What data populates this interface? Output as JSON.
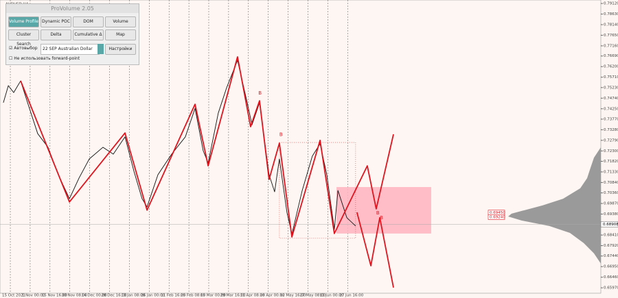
{
  "chart_data": {
    "type": "line",
    "symbol": "AUDUSD,H4",
    "xlim": [
      -0.52,
      29.76
    ],
    "ylim": [
      0.6572,
      0.7928
    ],
    "xticks": [
      {
        "value": 0,
        "label": "15 Oct 2021"
      },
      {
        "value": 1,
        "label": "1 Nov 00:00"
      },
      {
        "value": 2,
        "label": "15 Nov 16:00"
      },
      {
        "value": 3,
        "label": "30 Nov 08:00"
      },
      {
        "value": 4,
        "label": "14 Dec 00:00"
      },
      {
        "value": 5,
        "label": "28 Dec 16:00"
      },
      {
        "value": 6,
        "label": "13 Jan 08:00"
      },
      {
        "value": 7,
        "label": "26 Jan 00:00"
      },
      {
        "value": 8,
        "label": "11 Feb 16:00"
      },
      {
        "value": 9,
        "label": "25 Feb 08:00"
      },
      {
        "value": 10,
        "label": "15 Mar 00:00"
      },
      {
        "value": 11,
        "label": "29 Mar 16:00"
      },
      {
        "value": 12,
        "label": "11 Apr 08:00"
      },
      {
        "value": 13,
        "label": "28 Apr 00:00"
      },
      {
        "value": 14,
        "label": "12 May 16:00"
      },
      {
        "value": 15,
        "label": "27 May 08:00"
      },
      {
        "value": 16,
        "label": "13 Jun 00:00"
      },
      {
        "value": 17,
        "label": "27 Jun 16:00"
      }
    ],
    "yticks": [
      {
        "value": 0.7912,
        "label": "0.79120"
      },
      {
        "value": 0.7863,
        "label": "0.78630"
      },
      {
        "value": 0.7814,
        "label": "0.78140"
      },
      {
        "value": 0.7765,
        "label": "0.77650"
      },
      {
        "value": 0.7716,
        "label": "0.77160"
      },
      {
        "value": 0.7669,
        "label": "0.76690"
      },
      {
        "value": 0.762,
        "label": "0.76200"
      },
      {
        "value": 0.7571,
        "label": "0.75710"
      },
      {
        "value": 0.7523,
        "label": "0.75230"
      },
      {
        "value": 0.7474,
        "label": "0.74740"
      },
      {
        "value": 0.7425,
        "label": "0.74250"
      },
      {
        "value": 0.7377,
        "label": "0.73770"
      },
      {
        "value": 0.7328,
        "label": "0.73280"
      },
      {
        "value": 0.7279,
        "label": "0.72790"
      },
      {
        "value": 0.723,
        "label": "0.72300"
      },
      {
        "value": 0.7182,
        "label": "0.71820"
      },
      {
        "value": 0.7133,
        "label": "0.71330"
      },
      {
        "value": 0.7084,
        "label": "0.70840"
      },
      {
        "value": 0.7036,
        "label": "0.70360"
      },
      {
        "value": 0.6987,
        "label": "0.69870"
      },
      {
        "value": 0.6938,
        "label": "0.69380"
      },
      {
        "value": 0.6841,
        "label": "0.68410"
      },
      {
        "value": 0.6792,
        "label": "0.67920"
      },
      {
        "value": 0.6744,
        "label": "0.67440"
      },
      {
        "value": 0.6695,
        "label": "0.66950"
      },
      {
        "value": 0.6646,
        "label": "0.66460"
      },
      {
        "value": 0.6597,
        "label": "0.65970"
      }
    ],
    "current_price": 0.68908,
    "series": [
      {
        "color": "#111111",
        "x": [
          -0.35,
          -0.1,
          0.17,
          0.52,
          0.87,
          1.38,
          1.9,
          2.42,
          2.98,
          3.46,
          3.98,
          4.67,
          5.19,
          5.78,
          6.23,
          6.64,
          6.89,
          7.44,
          8.13,
          8.82,
          9.31,
          9.72,
          9.97,
          10.48,
          10.9,
          11.45,
          11.94,
          12.18,
          12.56,
          13.04,
          13.32,
          13.56,
          13.94,
          14.19,
          14.71,
          15.22,
          15.61,
          15.95,
          16.33,
          16.51,
          16.96,
          17.4
        ],
        "values": [
          0.7453,
          0.7532,
          0.75,
          0.7554,
          0.7453,
          0.731,
          0.7247,
          0.712,
          0.7009,
          0.7104,
          0.7193,
          0.7247,
          0.7215,
          0.7295,
          0.7136,
          0.7009,
          0.6971,
          0.712,
          0.7215,
          0.7295,
          0.7427,
          0.7231,
          0.7174,
          0.7405,
          0.7522,
          0.7649,
          0.7453,
          0.7351,
          0.7453,
          0.712,
          0.7041,
          0.7193,
          0.6946,
          0.6845,
          0.7047,
          0.7206,
          0.7263,
          0.712,
          0.6867,
          0.7047,
          0.6921,
          0.6883
        ]
      },
      {
        "color": "#e0141e",
        "x": [
          0.52,
          2.98,
          5.78,
          6.89,
          9.31,
          9.97,
          11.45,
          12.11,
          12.56,
          13.04,
          13.56,
          14.19,
          15.61,
          16.33,
          17.99,
          18.44,
          19.31
        ],
        "values": [
          0.7554,
          0.6994,
          0.7313,
          0.6956,
          0.7446,
          0.7161,
          0.7665,
          0.7342,
          0.7462,
          0.7098,
          0.7266,
          0.6832,
          0.7279,
          0.6848,
          0.7161,
          0.6962,
          0.7307
        ]
      },
      {
        "color": "#e0141e",
        "x": [
          17.47,
          18.17,
          18.62,
          19.31
        ],
        "values": [
          0.6946,
          0.6699,
          0.6921,
          0.6598
        ]
      }
    ],
    "zones": [
      {
        "x": [
          16.44,
          21.21
        ],
        "y": [
          0.7063,
          0.6848
        ],
        "color": "#ffb3c0"
      },
      {
        "x": [
          13.56,
          17.4
        ],
        "y": [
          0.7269,
          0.6826
        ],
        "color": "#e05050",
        "style": "dotted"
      }
    ],
    "annotations": [
      {
        "text": "B",
        "x": 12.5,
        "y": 0.7497
      },
      {
        "text": "B",
        "x": 13.56,
        "y": 0.7305
      },
      {
        "text": "B",
        "x": 18.44,
        "y": 0.6942
      },
      {
        "text": "B",
        "x": 18.62,
        "y": 0.692
      }
    ],
    "price_tags": [
      {
        "values": 0.6945,
        "value_labels": "0.69450"
      },
      {
        "values": 0.6924,
        "value_labels": "0.69240"
      }
    ],
    "volume_profile": {
      "color": "#9a9a9a",
      "prices": [
        0.7247,
        0.7199,
        0.7152,
        0.7104,
        0.7057,
        0.7009,
        0.6978,
        0.694,
        0.6927,
        0.6908,
        0.6883,
        0.6851,
        0.6804,
        0.6756,
        0.6709
      ],
      "values": [
        0,
        10,
        15,
        20,
        30,
        55,
        85,
        130,
        135,
        115,
        75,
        45,
        25,
        10,
        0
      ]
    }
  },
  "panel": {
    "title": "ProVolume 2.05",
    "buttons": [
      "Volume Profile",
      "Dynamic POC",
      "DOM",
      "Volume",
      "Cluster Search",
      "Delta",
      "Cumulative Δ",
      "Map"
    ],
    "auto": "Автовыбор",
    "instrument": "22 SEP Australian Dollar",
    "settings": "Настройки",
    "forward": "Не использовать forward-point"
  }
}
